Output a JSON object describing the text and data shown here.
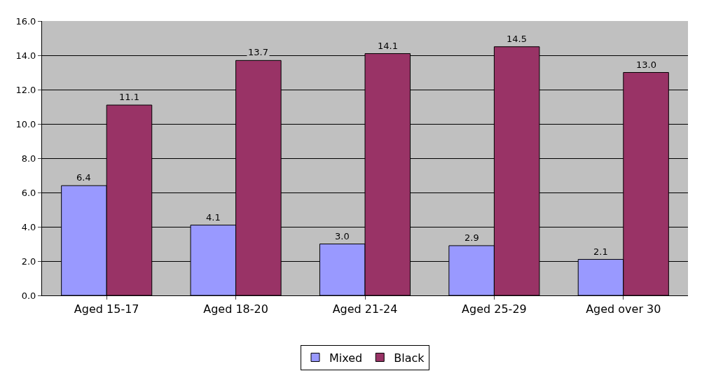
{
  "chart_data": {
    "type": "bar",
    "categories": [
      "Aged 15-17",
      "Aged 18-20",
      "Aged 21-24",
      "Aged 25-29",
      "Aged over 30"
    ],
    "series": [
      {
        "name": "Mixed",
        "color": "#9999ff",
        "values": [
          6.4,
          4.1,
          3.0,
          2.9,
          2.1
        ],
        "value_labels": [
          "6.4",
          "4.1",
          "3.0",
          "2.9",
          "2.1"
        ]
      },
      {
        "name": "Black",
        "color": "#993366",
        "values": [
          11.1,
          13.7,
          14.1,
          14.5,
          13.0
        ],
        "value_labels": [
          "11.1",
          "13.7",
          "14.1",
          "14.5",
          "13.0"
        ]
      }
    ],
    "ylim": [
      0,
      16
    ],
    "yticks": [
      {
        "value": 0,
        "label": "0.0"
      },
      {
        "value": 2,
        "label": "2.0"
      },
      {
        "value": 4,
        "label": "4.0"
      },
      {
        "value": 6,
        "label": "6.0"
      },
      {
        "value": 8,
        "label": "8.0"
      },
      {
        "value": 10,
        "label": "10.0"
      },
      {
        "value": 12,
        "label": "12.0"
      },
      {
        "value": 14,
        "label": "14.0"
      },
      {
        "value": 16,
        "label": "16.0"
      }
    ],
    "grid": "y",
    "legend": "bottom"
  }
}
